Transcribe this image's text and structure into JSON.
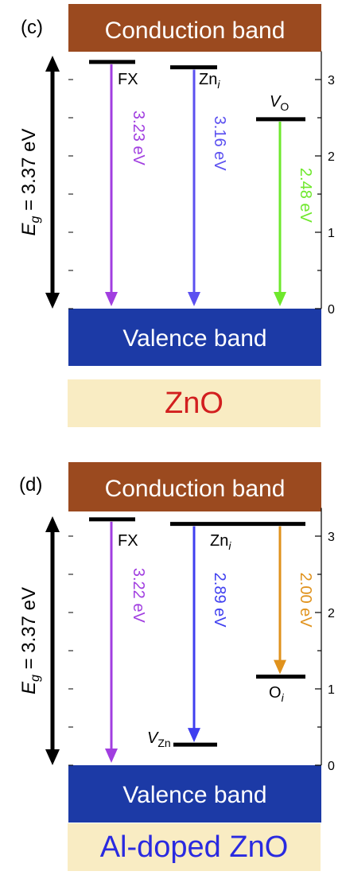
{
  "colors": {
    "conduction": "#9b4a1f",
    "valence": "#1c3aa6",
    "caption_bg": "#f9ecc3"
  },
  "panels": [
    {
      "letter": "(c)",
      "conduction_label": "Conduction band",
      "valence_label": "Valence band",
      "gap_label_main": "E",
      "gap_label_sub": "g",
      "gap_label_value": " = 3.37 eV",
      "ticks": [
        "0",
        "1",
        "2",
        "3"
      ],
      "caption": "ZnO",
      "caption_color": "#d21f1f",
      "levels": [
        {
          "name": "FX",
          "sub": "",
          "energy": 3.23
        },
        {
          "name": "Zn",
          "sub": "i",
          "energy": 3.16
        },
        {
          "name": "V",
          "sub": "O",
          "energy": 2.48
        }
      ],
      "transitions": [
        {
          "label": "3.23 eV",
          "color": "#a13ee0",
          "from": 3.23,
          "to": 0
        },
        {
          "label": "3.16 eV",
          "color": "#5b50f0",
          "from": 3.16,
          "to": 0
        },
        {
          "label": "2.48 eV",
          "color": "#6ee82c",
          "from": 2.48,
          "to": 0
        }
      ]
    },
    {
      "letter": "(d)",
      "conduction_label": "Conduction band",
      "valence_label": "Valence band",
      "gap_label_main": "E",
      "gap_label_sub": "g",
      "gap_label_value": " = 3.37 eV",
      "ticks": [
        "0",
        "1",
        "2",
        "3"
      ],
      "caption": "Al-doped ZnO",
      "caption_color": "#2a2ae0",
      "levels": [
        {
          "name": "FX",
          "sub": "",
          "energy": 3.22
        },
        {
          "name": "Zn",
          "sub": "i",
          "energy": 3.16
        },
        {
          "name": "V",
          "sub": "Zn",
          "energy": 0.27
        },
        {
          "name": "O",
          "sub": "i",
          "energy": 1.16
        }
      ],
      "transitions": [
        {
          "label": "3.22 eV",
          "color": "#a13ee0",
          "from": 3.22,
          "to": 0
        },
        {
          "label": "2.89 eV",
          "color": "#3f3ff0",
          "from": 3.16,
          "to": 0.27
        },
        {
          "label": "2.00 eV",
          "color": "#e0921c",
          "from": 3.16,
          "to": 1.16
        }
      ]
    }
  ]
}
